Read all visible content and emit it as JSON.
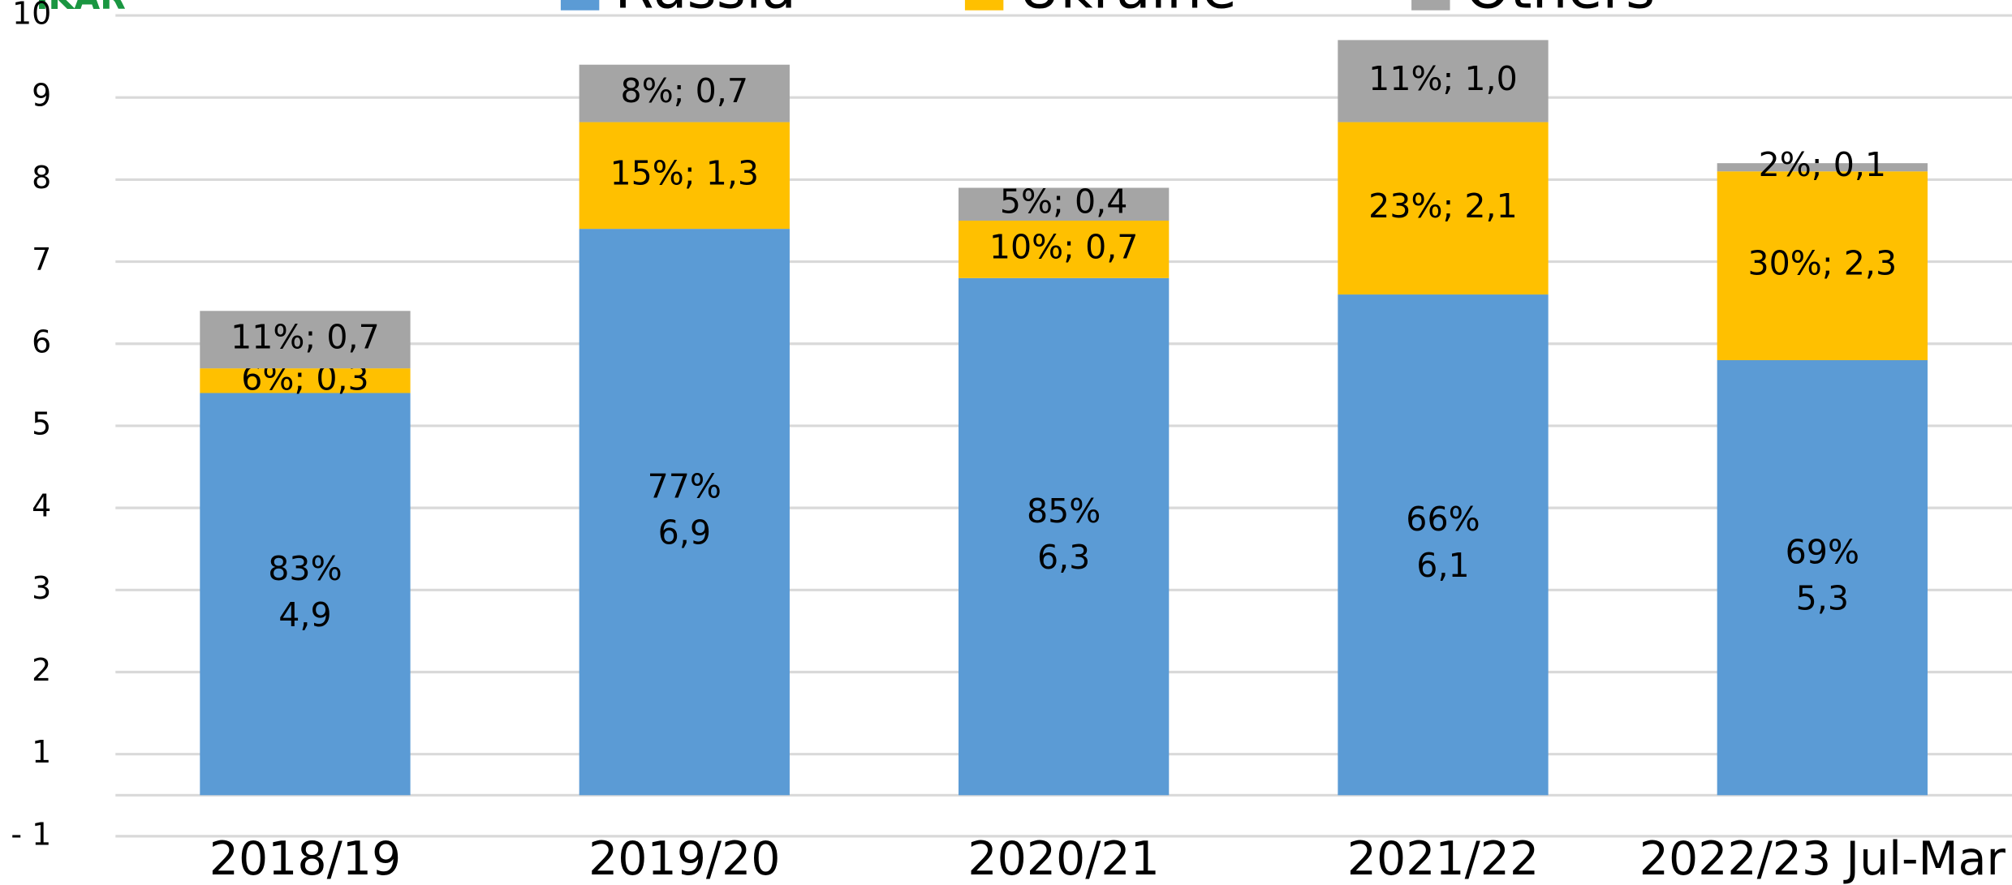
{
  "chart_data": {
    "type": "stacked_bar",
    "logo": "IKAR",
    "categories": [
      "2018/19",
      "2019/20",
      "2020/21",
      "2021/22",
      "2022/23 Jul-Mar"
    ],
    "series": [
      {
        "name": "Russia",
        "color": "#5b9bd5",
        "values": [
          4.9,
          6.9,
          6.3,
          6.1,
          5.3
        ],
        "value_labels": [
          [
            "83%",
            "4,9"
          ],
          [
            "77%",
            "6,9"
          ],
          [
            "85%",
            "6,3"
          ],
          [
            "66%",
            "6,1"
          ],
          [
            "69%",
            "5,3"
          ]
        ]
      },
      {
        "name": "Ukraine",
        "color": "#ffc000",
        "values": [
          0.3,
          1.3,
          0.7,
          2.1,
          2.3
        ],
        "value_labels": [
          "6%; 0,3",
          "15%; 1,3",
          "10%; 0,7",
          "23%; 2,1",
          "30%; 2,3"
        ]
      },
      {
        "name": "Others",
        "color": "#a5a5a5",
        "values": [
          0.7,
          0.7,
          0.4,
          1.0,
          0.1
        ],
        "value_labels": [
          "11%; 0,7",
          "8%; 0,7",
          "5%; 0,4",
          "11%; 1,0",
          "2%; 0,1"
        ]
      }
    ],
    "ylim": [
      -0.5,
      9.5
    ],
    "yticks": [
      {
        "value": -0.5,
        "label": "- 1"
      },
      {
        "value": 0.5,
        "label": "1"
      },
      {
        "value": 1.5,
        "label": "2"
      },
      {
        "value": 2.5,
        "label": "3"
      },
      {
        "value": 3.5,
        "label": "4"
      },
      {
        "value": 4.5,
        "label": "5"
      },
      {
        "value": 5.5,
        "label": "6"
      },
      {
        "value": 6.5,
        "label": "7"
      },
      {
        "value": 7.5,
        "label": "8"
      },
      {
        "value": 8.5,
        "label": "9"
      },
      {
        "value": 9.5,
        "label": "10"
      }
    ],
    "grid": true,
    "legend": "top"
  }
}
